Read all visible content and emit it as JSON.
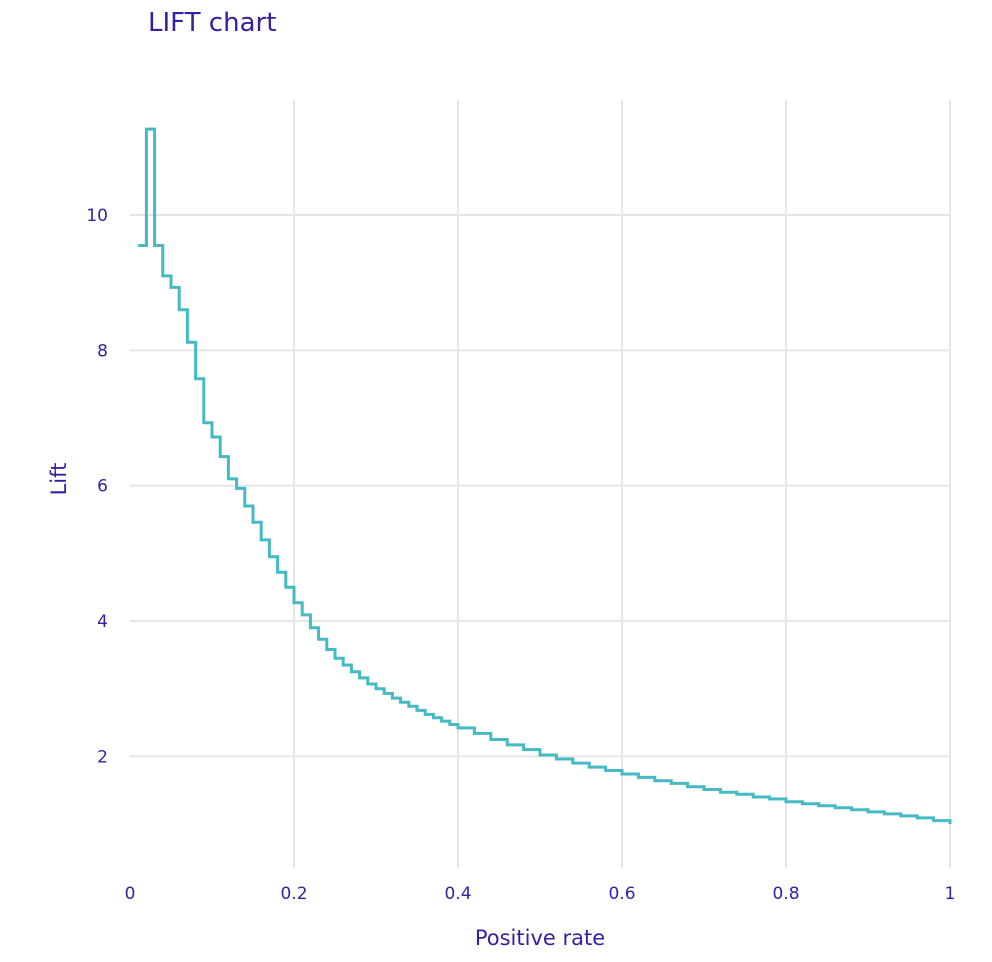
{
  "chart_data": {
    "type": "line",
    "line_shape": "step",
    "title": "LIFT chart",
    "xlabel": "Positive rate",
    "ylabel": "Lift",
    "xlim": [
      0,
      1
    ],
    "ylim": [
      0.35,
      11.7
    ],
    "x_ticks": [
      0,
      0.2,
      0.4,
      0.6,
      0.8,
      1
    ],
    "x_tick_labels": [
      "0",
      "0.2",
      "0.4",
      "0.6",
      "0.8",
      "1"
    ],
    "y_ticks": [
      2,
      4,
      6,
      8,
      10
    ],
    "y_tick_labels": [
      "2",
      "4",
      "6",
      "8",
      "10"
    ],
    "grid": true,
    "legend": "none",
    "colors": {
      "line": "#46bac2",
      "grid": "#e6e6e6",
      "text": "#371ea3"
    },
    "series": [
      {
        "x": [
          0.01,
          0.02,
          0.03,
          0.04,
          0.05,
          0.06,
          0.07,
          0.08,
          0.09,
          0.1,
          0.11,
          0.12,
          0.13,
          0.14,
          0.15,
          0.16,
          0.17,
          0.18,
          0.19,
          0.2,
          0.21,
          0.22,
          0.23,
          0.24,
          0.25,
          0.26,
          0.27,
          0.28,
          0.29,
          0.3,
          0.31,
          0.32,
          0.33,
          0.34,
          0.35,
          0.36,
          0.37,
          0.38,
          0.39,
          0.4,
          0.42,
          0.44,
          0.46,
          0.48,
          0.5,
          0.52,
          0.54,
          0.56,
          0.58,
          0.6,
          0.62,
          0.64,
          0.66,
          0.68,
          0.7,
          0.72,
          0.74,
          0.76,
          0.78,
          0.8,
          0.82,
          0.84,
          0.86,
          0.88,
          0.9,
          0.92,
          0.94,
          0.96,
          0.98,
          1.0
        ],
        "y": [
          9.55,
          11.27,
          9.55,
          9.1,
          8.93,
          8.6,
          8.12,
          7.58,
          6.93,
          6.72,
          6.43,
          6.1,
          5.96,
          5.7,
          5.46,
          5.2,
          4.95,
          4.72,
          4.5,
          4.27,
          4.09,
          3.9,
          3.73,
          3.58,
          3.45,
          3.35,
          3.25,
          3.16,
          3.07,
          3.0,
          2.93,
          2.86,
          2.8,
          2.74,
          2.68,
          2.62,
          2.57,
          2.52,
          2.47,
          2.42,
          2.34,
          2.25,
          2.17,
          2.1,
          2.02,
          1.96,
          1.9,
          1.84,
          1.79,
          1.74,
          1.69,
          1.64,
          1.6,
          1.55,
          1.51,
          1.47,
          1.44,
          1.4,
          1.37,
          1.33,
          1.3,
          1.27,
          1.24,
          1.21,
          1.18,
          1.15,
          1.12,
          1.09,
          1.05,
          1.0
        ]
      }
    ]
  }
}
